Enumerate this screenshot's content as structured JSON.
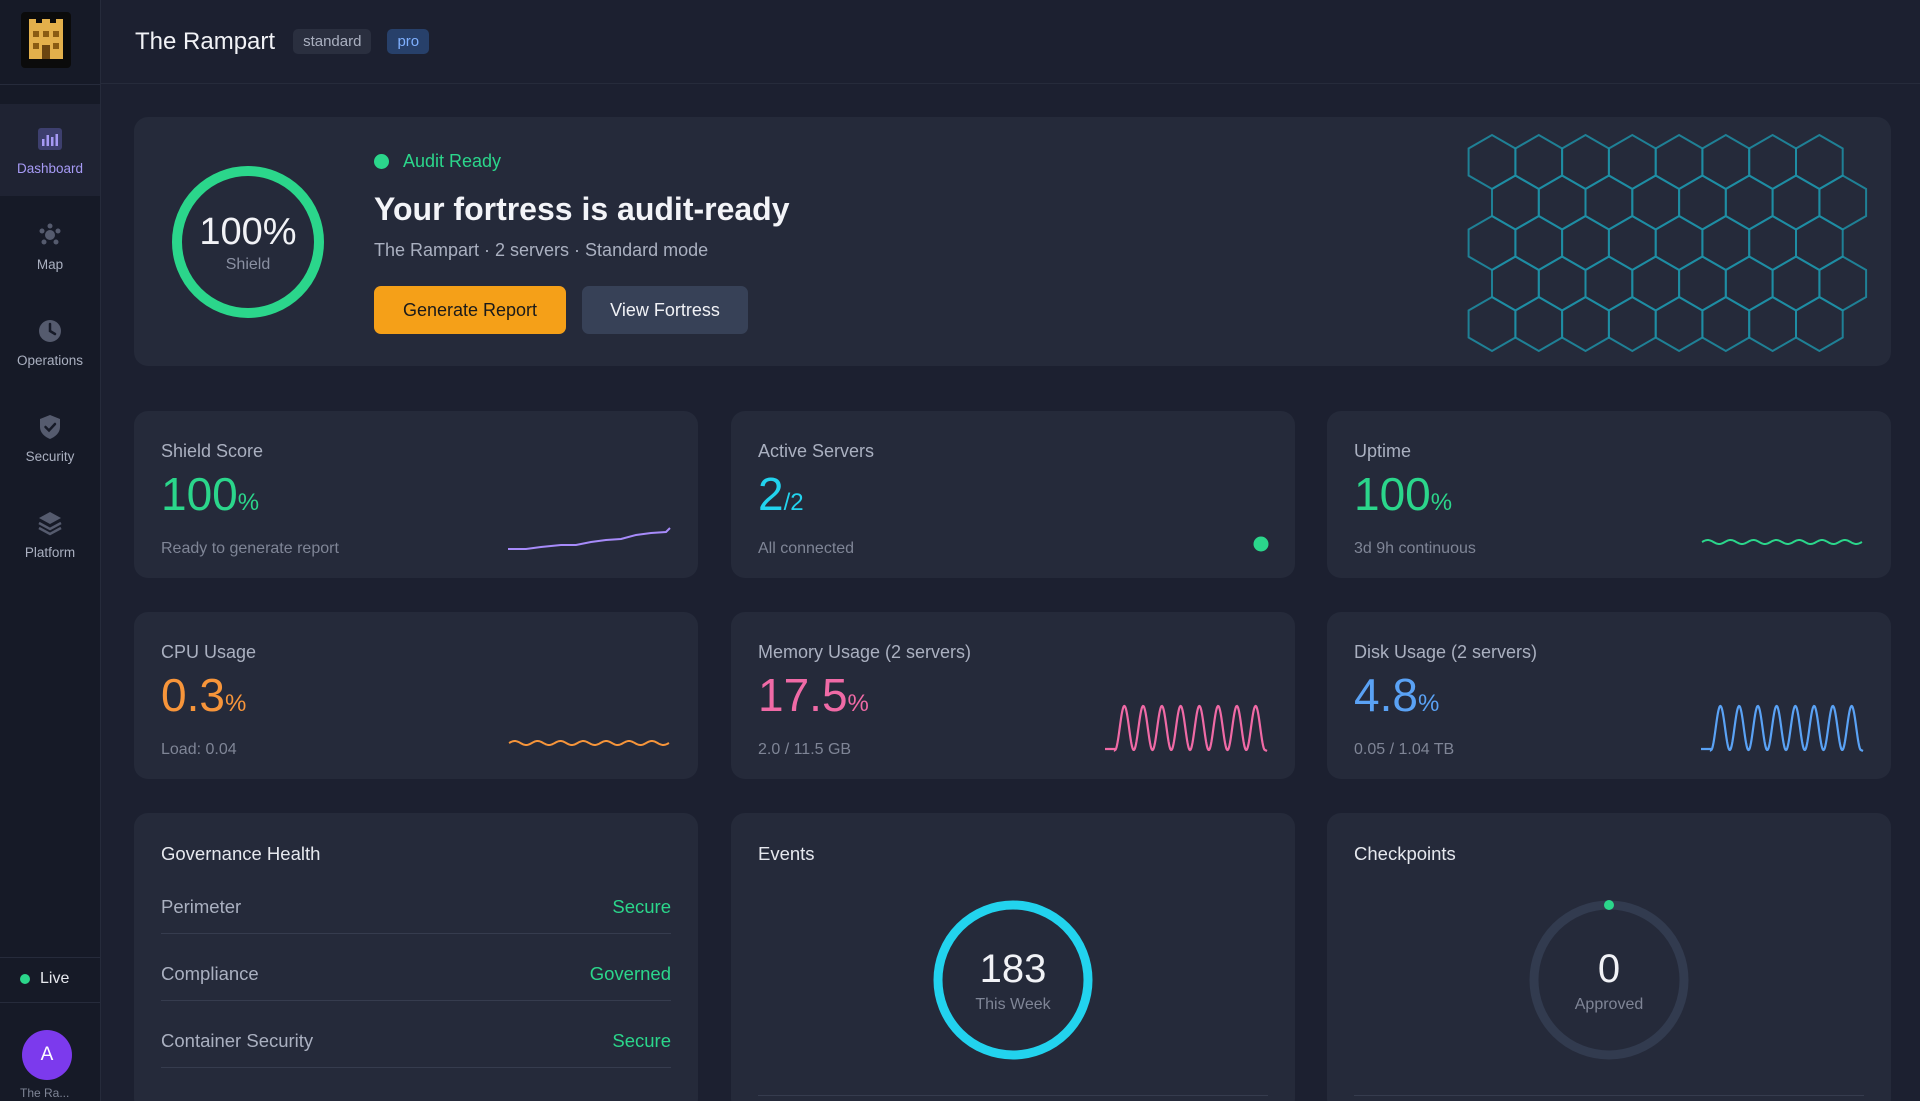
{
  "app": {
    "title": "The Rampart",
    "badges": [
      "standard",
      "pro"
    ]
  },
  "sidebar": {
    "items": [
      {
        "label": "Dashboard",
        "icon": "bar-chart-icon",
        "active": true
      },
      {
        "label": "Map",
        "icon": "network-icon"
      },
      {
        "label": "Operations",
        "icon": "clock-icon"
      },
      {
        "label": "Security",
        "icon": "shield-icon"
      },
      {
        "label": "Platform",
        "icon": "layers-icon"
      }
    ],
    "live_label": "Live",
    "user_initial": "A",
    "user_name": "The Ra..."
  },
  "hero": {
    "ring_value": "100%",
    "ring_label": "Shield",
    "ring_fraction": 1.0,
    "status": "Audit Ready",
    "title": "Your fortress is audit-ready",
    "subtitle": "The Rampart · 2 servers · Standard mode",
    "primary_button": "Generate Report",
    "secondary_button": "View Fortress"
  },
  "stats": [
    {
      "label": "Shield Score",
      "value": "100",
      "unit": "%",
      "sub": "Ready to generate report",
      "color": "#2bd68b",
      "spark_color": "#a78bfa"
    },
    {
      "label": "Active Servers",
      "value": "2",
      "unit": "/2",
      "sub": "All connected",
      "color": "#22d3ee"
    },
    {
      "label": "Uptime",
      "value": "100",
      "unit": "%",
      "sub": "3d 9h continuous",
      "color": "#2bd68b",
      "spark_color": "#2bd68b"
    },
    {
      "label": "CPU Usage",
      "value": "0.3",
      "unit": "%",
      "sub": "Load: 0.04",
      "color": "#f7953a",
      "spark_color": "#f7953a"
    },
    {
      "label": "Memory Usage (2 servers)",
      "value": "17.5",
      "unit": "%",
      "sub": "2.0 / 11.5 GB",
      "color": "#f06aa6",
      "spark_color": "#f06aa6"
    },
    {
      "label": "Disk Usage (2 servers)",
      "value": "4.8",
      "unit": "%",
      "sub": "0.05 / 1.04 TB",
      "color": "#5aa2f5",
      "spark_color": "#5aa2f5"
    }
  ],
  "governance": {
    "title": "Governance Health",
    "rows": [
      {
        "label": "Perimeter",
        "value": "Secure"
      },
      {
        "label": "Compliance",
        "value": "Governed"
      },
      {
        "label": "Container Security",
        "value": "Secure"
      }
    ]
  },
  "events": {
    "title": "Events",
    "value": "183",
    "label": "This Week"
  },
  "checkpoints": {
    "title": "Checkpoints",
    "value": "0",
    "label": "Approved"
  }
}
